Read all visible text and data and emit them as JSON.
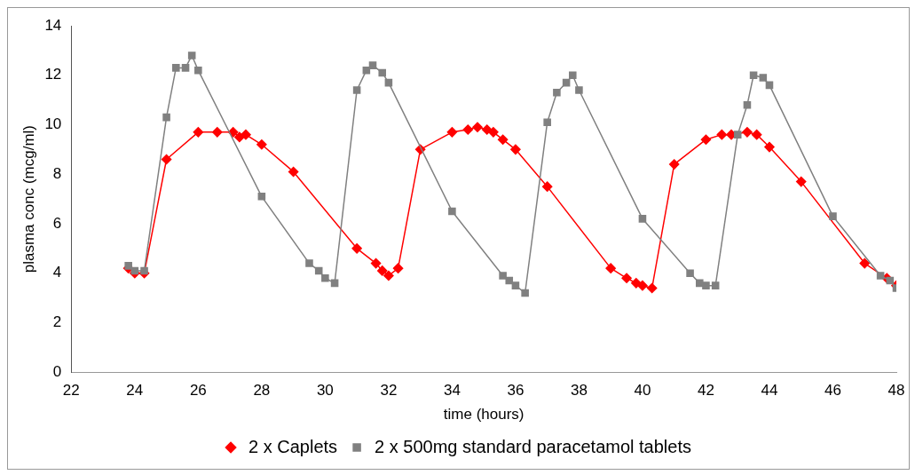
{
  "chart_data": {
    "type": "line",
    "xlabel": "time (hours)",
    "ylabel": "plasma conc (mcg/ml)",
    "xlim": [
      22,
      48
    ],
    "xticks": [
      22,
      24,
      26,
      28,
      30,
      32,
      34,
      36,
      38,
      40,
      42,
      44,
      46,
      48
    ],
    "ylim": [
      0,
      14
    ],
    "yticks": [
      0,
      2,
      4,
      6,
      8,
      10,
      12,
      14
    ],
    "grid": false,
    "legend": "bottom",
    "line_style": "solid",
    "series": [
      {
        "name": "2 x Caplets",
        "color": "#ff0000",
        "marker": "diamond",
        "x": [
          23.8,
          24.0,
          24.3,
          25.0,
          26.0,
          26.6,
          27.1,
          27.3,
          27.5,
          28.0,
          29.0,
          31.0,
          31.6,
          31.8,
          32.0,
          32.3,
          33.0,
          34.0,
          34.5,
          34.8,
          35.1,
          35.3,
          35.6,
          36.0,
          37.0,
          39.0,
          39.5,
          39.8,
          40.0,
          40.3,
          41.0,
          42.0,
          42.5,
          42.8,
          43.3,
          43.6,
          44.0,
          45.0,
          47.0,
          47.7,
          48.0
        ],
        "values": [
          4.2,
          4.0,
          4.0,
          8.6,
          9.7,
          9.7,
          9.7,
          9.5,
          9.6,
          9.2,
          8.1,
          5.0,
          4.4,
          4.1,
          3.9,
          4.2,
          9.0,
          9.7,
          9.8,
          9.9,
          9.8,
          9.7,
          9.4,
          9.0,
          7.5,
          4.2,
          3.8,
          3.6,
          3.5,
          3.4,
          8.4,
          9.4,
          9.6,
          9.6,
          9.7,
          9.6,
          9.1,
          7.7,
          4.4,
          3.8,
          3.5
        ]
      },
      {
        "name": "2 x 500mg standard paracetamol tablets",
        "color": "#808080",
        "marker": "square",
        "x": [
          23.8,
          24.0,
          24.3,
          25.0,
          25.3,
          25.6,
          25.8,
          26.0,
          28.0,
          29.5,
          29.8,
          30.0,
          30.3,
          31.0,
          31.3,
          31.5,
          31.8,
          32.0,
          34.0,
          35.6,
          35.8,
          36.0,
          36.3,
          37.0,
          37.3,
          37.6,
          37.8,
          38.0,
          40.0,
          41.5,
          41.8,
          42.0,
          42.3,
          43.0,
          43.3,
          43.5,
          43.8,
          44.0,
          46.0,
          47.5,
          47.8,
          48.0
        ],
        "values": [
          4.3,
          4.1,
          4.1,
          10.3,
          12.3,
          12.3,
          12.8,
          12.2,
          7.1,
          4.4,
          4.1,
          3.8,
          3.6,
          11.4,
          12.2,
          12.4,
          12.1,
          11.7,
          6.5,
          3.9,
          3.7,
          3.5,
          3.2,
          10.1,
          11.3,
          11.7,
          12.0,
          11.4,
          6.2,
          4.0,
          3.6,
          3.5,
          3.5,
          9.6,
          10.8,
          12.0,
          11.9,
          11.6,
          6.3,
          3.9,
          3.7,
          3.4
        ]
      }
    ]
  }
}
